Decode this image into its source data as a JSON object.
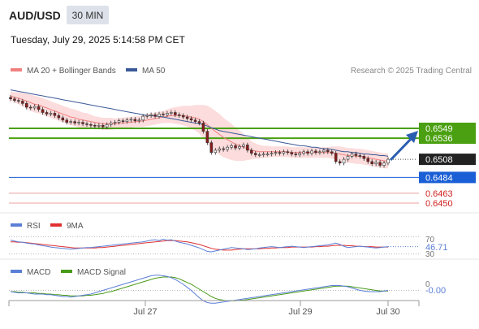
{
  "header": {
    "symbol": "AUD/USD",
    "interval": "30 MIN",
    "timestamp": "Tuesday, July 29, 2025 5:14:58 PM CET"
  },
  "price_panel": {
    "legend": [
      {
        "label": "MA 20 + Bollinger Bands",
        "color": "#f08080"
      },
      {
        "label": "MA 50",
        "color": "#3b5998"
      }
    ],
    "copyright": "Research © 2025 Trading Central"
  },
  "rsi_panel": {
    "legend": [
      {
        "label": "RSI",
        "color": "#5b7fd6"
      },
      {
        "label": "9MA",
        "color": "#e03030"
      }
    ],
    "level_label": "70",
    "current_value": "46.71",
    "lower_label": "30"
  },
  "macd_panel": {
    "legend": [
      {
        "label": "MACD",
        "color": "#5b7fd6"
      },
      {
        "label": "MACD Signal",
        "color": "#4a9a1a"
      }
    ],
    "zero_label": "0",
    "current_value": "-0.00"
  },
  "chart_data": {
    "type": "candlestick",
    "x_ticks": [
      "Jul 27",
      "Jul 29",
      "Jul 30"
    ],
    "price_levels": [
      {
        "value": 0.6549,
        "label": "0.6549",
        "style": "resistance",
        "color": "#4aa010"
      },
      {
        "value": 0.6536,
        "label": "0.6536",
        "style": "resistance",
        "color": "#4aa010"
      },
      {
        "value": 0.6508,
        "label": "0.6508",
        "style": "current",
        "color": "#222222"
      },
      {
        "value": 0.6484,
        "label": "0.6484",
        "style": "pivot",
        "color": "#1a5fd6"
      },
      {
        "value": 0.6463,
        "label": "0.6463",
        "style": "support",
        "color": "#d02020"
      },
      {
        "value": 0.645,
        "label": "0.6450",
        "style": "support",
        "color": "#d02020"
      }
    ],
    "price_range": [
      0.644,
      0.66
    ],
    "close_series": [
      0.6588,
      0.6586,
      0.6585,
      0.6582,
      0.6577,
      0.6576,
      0.6578,
      0.6574,
      0.657,
      0.6568,
      0.6569,
      0.6566,
      0.6563,
      0.656,
      0.6557,
      0.6558,
      0.6556,
      0.6557,
      0.6555,
      0.6554,
      0.6553,
      0.6552,
      0.6553,
      0.6551,
      0.6554,
      0.6556,
      0.6557,
      0.6559,
      0.6558,
      0.656,
      0.6561,
      0.6559,
      0.656,
      0.6565,
      0.6566,
      0.6567,
      0.6565,
      0.6568,
      0.6567,
      0.6569,
      0.657,
      0.6567,
      0.6566,
      0.6564,
      0.6562,
      0.656,
      0.6558,
      0.6556,
      0.6545,
      0.653,
      0.6517,
      0.652,
      0.6522,
      0.6521,
      0.6524,
      0.6526,
      0.6523,
      0.6525,
      0.6527,
      0.652,
      0.6516,
      0.6514,
      0.6514,
      0.6515,
      0.6515,
      0.6516,
      0.6517,
      0.6516,
      0.6518,
      0.6517,
      0.6515,
      0.6514,
      0.6516,
      0.6518,
      0.6516,
      0.6519,
      0.6517,
      0.6518,
      0.652,
      0.6518,
      0.6516,
      0.6505,
      0.6503,
      0.6508,
      0.6512,
      0.6515,
      0.6513,
      0.6512,
      0.6509,
      0.6505,
      0.6502,
      0.6504,
      0.65,
      0.6503,
      0.6508
    ],
    "ma20": [
      0.6592,
      0.659,
      0.6589,
      0.6587,
      0.6585,
      0.6583,
      0.6581,
      0.658,
      0.6578,
      0.6576,
      0.6574,
      0.6572,
      0.657,
      0.6568,
      0.6566,
      0.6564,
      0.6563,
      0.6561,
      0.656,
      0.6559,
      0.6558,
      0.6557,
      0.6556,
      0.6555,
      0.6555,
      0.6555,
      0.6555,
      0.6556,
      0.6556,
      0.6557,
      0.6557,
      0.6558,
      0.6558,
      0.6559,
      0.656,
      0.6561,
      0.6562,
      0.6563,
      0.6564,
      0.6565,
      0.6566,
      0.6566,
      0.6566,
      0.6566,
      0.6565,
      0.6564,
      0.6563,
      0.6561,
      0.6558,
      0.6554,
      0.6549,
      0.6545,
      0.6541,
      0.6537,
      0.6534,
      0.6531,
      0.6528,
      0.6526,
      0.6524,
      0.6522,
      0.652,
      0.6519,
      0.6518,
      0.6518,
      0.6518,
      0.6518,
      0.6518,
      0.6518,
      0.6518,
      0.6518,
      0.6517,
      0.6517,
      0.6517,
      0.6517,
      0.6517,
      0.6517,
      0.6517,
      0.6517,
      0.6517,
      0.6517,
      0.6517,
      0.6516,
      0.6515,
      0.6514,
      0.6513,
      0.6513,
      0.6512,
      0.6512,
      0.6511,
      0.651,
      0.6509,
      0.6508,
      0.6507,
      0.6506,
      0.6506
    ],
    "ma50": [
      0.66,
      0.6599,
      0.6598,
      0.6597,
      0.6596,
      0.6595,
      0.6594,
      0.6593,
      0.6592,
      0.6591,
      0.659,
      0.6589,
      0.6588,
      0.6587,
      0.6586,
      0.6585,
      0.6584,
      0.6583,
      0.6582,
      0.6581,
      0.658,
      0.6579,
      0.6578,
      0.6577,
      0.6576,
      0.6575,
      0.6574,
      0.6573,
      0.6572,
      0.6571,
      0.657,
      0.6569,
      0.6568,
      0.6567,
      0.6566,
      0.6566,
      0.6565,
      0.6565,
      0.6564,
      0.6563,
      0.6562,
      0.6561,
      0.656,
      0.6559,
      0.6558,
      0.6557,
      0.6556,
      0.6555,
      0.6554,
      0.6552,
      0.655,
      0.6548,
      0.6546,
      0.6545,
      0.6544,
      0.6543,
      0.6542,
      0.6541,
      0.654,
      0.6539,
      0.6538,
      0.6537,
      0.6536,
      0.6535,
      0.6534,
      0.6533,
      0.6532,
      0.6531,
      0.653,
      0.6529,
      0.6528,
      0.6527,
      0.6526,
      0.6526,
      0.6525,
      0.6524,
      0.6524,
      0.6523,
      0.6522,
      0.6522,
      0.6521,
      0.652,
      0.6519,
      0.6518,
      0.6518,
      0.6517,
      0.6517,
      0.6516,
      0.6515,
      0.6515,
      0.6514,
      0.6514,
      0.6513,
      0.6513,
      0.6512
    ],
    "bb_width": [
      0.0006,
      0.0007,
      0.0008,
      0.0009,
      0.001,
      0.0011,
      0.0011,
      0.0011,
      0.0011,
      0.0011,
      0.0011,
      0.0011,
      0.0011,
      0.0011,
      0.0011,
      0.0011,
      0.0011,
      0.0011,
      0.001,
      0.001,
      0.0009,
      0.0008,
      0.0008,
      0.0008,
      0.0008,
      0.0008,
      0.0007,
      0.0007,
      0.0007,
      0.0007,
      0.0007,
      0.0007,
      0.0007,
      0.0008,
      0.0008,
      0.0008,
      0.0008,
      0.0008,
      0.0008,
      0.0009,
      0.001,
      0.0011,
      0.0012,
      0.0013,
      0.0014,
      0.0015,
      0.0017,
      0.0019,
      0.0022,
      0.0025,
      0.0027,
      0.0027,
      0.0027,
      0.0026,
      0.0025,
      0.0024,
      0.0022,
      0.002,
      0.0018,
      0.0015,
      0.0012,
      0.001,
      0.0009,
      0.0008,
      0.0008,
      0.0007,
      0.0007,
      0.0007,
      0.0007,
      0.0007,
      0.0007,
      0.0007,
      0.0007,
      0.0007,
      0.0007,
      0.0007,
      0.0007,
      0.0007,
      0.0007,
      0.0007,
      0.0008,
      0.0009,
      0.001,
      0.001,
      0.001,
      0.001,
      0.001,
      0.001,
      0.001,
      0.001,
      0.001,
      0.001,
      0.001,
      0.001,
      0.001
    ],
    "rsi": [
      62,
      60,
      58,
      57,
      55,
      54,
      53,
      51,
      49,
      48,
      46,
      45,
      44,
      43,
      42,
      41,
      42,
      43,
      44,
      45,
      45,
      46,
      47,
      48,
      49,
      50,
      51,
      52,
      53,
      54,
      55,
      56,
      57,
      58,
      60,
      62,
      63,
      61,
      64,
      62,
      63,
      60,
      57,
      55,
      53,
      50,
      47,
      44,
      40,
      36,
      35,
      37,
      39,
      41,
      43,
      45,
      44,
      43,
      42,
      40,
      41,
      42,
      44,
      45,
      46,
      47,
      46,
      45,
      46,
      47,
      48,
      47,
      46,
      45,
      46,
      47,
      48,
      49,
      50,
      51,
      53,
      55,
      52,
      48,
      45,
      46,
      47,
      48,
      47,
      46,
      45,
      44,
      45,
      46,
      47
    ],
    "rsi_ma": [
      58,
      58,
      57,
      57,
      56,
      55,
      54,
      53,
      52,
      51,
      50,
      49,
      48,
      47,
      46,
      45,
      44,
      44,
      44,
      44,
      44,
      44,
      45,
      45,
      46,
      47,
      48,
      49,
      50,
      51,
      52,
      53,
      54,
      55,
      56,
      57,
      58,
      59,
      60,
      61,
      61,
      61,
      60,
      59,
      58,
      56,
      54,
      52,
      49,
      46,
      43,
      41,
      40,
      39,
      39,
      39,
      40,
      41,
      42,
      42,
      42,
      42,
      42,
      43,
      43,
      44,
      44,
      45,
      45,
      45,
      46,
      46,
      46,
      46,
      46,
      46,
      47,
      47,
      48,
      48,
      49,
      50,
      50,
      50,
      49,
      49,
      48,
      48,
      47,
      47,
      47,
      46,
      46,
      46,
      46
    ],
    "rsi_range": [
      20,
      80
    ],
    "macd": [
      -0.0002,
      -0.0003,
      -0.0004,
      -0.0004,
      -0.0004,
      -0.0005,
      -0.0006,
      -0.0006,
      -0.0006,
      -0.0007,
      -0.0007,
      -0.0008,
      -0.0009,
      -0.001,
      -0.001,
      -0.0011,
      -0.001,
      -0.0009,
      -0.0008,
      -0.0007,
      -0.0006,
      -0.0004,
      -0.0002,
      0.0,
      0.0002,
      0.0004,
      0.0006,
      0.0008,
      0.001,
      0.0012,
      0.0014,
      0.0016,
      0.0018,
      0.002,
      0.0022,
      0.0024,
      0.0025,
      0.0025,
      0.0024,
      0.0023,
      0.0021,
      0.0018,
      0.0014,
      0.001,
      0.0005,
      0.0,
      -0.0006,
      -0.0012,
      -0.0017,
      -0.002,
      -0.0021,
      -0.0021,
      -0.002,
      -0.0019,
      -0.0018,
      -0.0017,
      -0.0016,
      -0.0015,
      -0.0014,
      -0.0013,
      -0.0012,
      -0.0011,
      -0.001,
      -0.0009,
      -0.0008,
      -0.0007,
      -0.0006,
      -0.0005,
      -0.0004,
      -0.0003,
      -0.0002,
      -0.0001,
      0.0,
      0.0001,
      0.0002,
      0.0003,
      0.0004,
      0.0005,
      0.0006,
      0.0007,
      0.0008,
      0.0008,
      0.0008,
      0.0007,
      0.0006,
      0.0004,
      0.0002,
      0.0,
      -0.0001,
      -0.0002,
      -0.0002,
      -0.0002,
      -0.0002,
      -0.0001,
      0.0
    ],
    "macd_signal": [
      -0.0002,
      -0.0002,
      -0.0003,
      -0.0003,
      -0.0004,
      -0.0004,
      -0.0004,
      -0.0005,
      -0.0005,
      -0.0006,
      -0.0006,
      -0.0007,
      -0.0007,
      -0.0008,
      -0.0008,
      -0.0009,
      -0.0009,
      -0.0009,
      -0.0009,
      -0.0008,
      -0.0008,
      -0.0007,
      -0.0006,
      -0.0005,
      -0.0003,
      -0.0002,
      0.0,
      0.0002,
      0.0004,
      0.0006,
      0.0008,
      0.001,
      0.0012,
      0.0014,
      0.0016,
      0.0018,
      0.002,
      0.0021,
      0.0022,
      0.0022,
      0.0022,
      0.0021,
      0.0019,
      0.0016,
      0.0013,
      0.001,
      0.0006,
      0.0002,
      -0.0002,
      -0.0006,
      -0.001,
      -0.0013,
      -0.0015,
      -0.0016,
      -0.0017,
      -0.0017,
      -0.0017,
      -0.0016,
      -0.0016,
      -0.0015,
      -0.0014,
      -0.0013,
      -0.0012,
      -0.0011,
      -0.001,
      -0.0009,
      -0.0008,
      -0.0007,
      -0.0006,
      -0.0005,
      -0.0004,
      -0.0003,
      -0.0002,
      -0.0001,
      0.0,
      0.0001,
      0.0002,
      0.0003,
      0.0004,
      0.0005,
      0.0006,
      0.0007,
      0.0007,
      0.0007,
      0.0007,
      0.0006,
      0.0005,
      0.0004,
      0.0003,
      0.0002,
      0.0001,
      0.0,
      -0.0001,
      -0.0001,
      -0.0001
    ],
    "macd_range": [
      -0.003,
      0.003
    ]
  }
}
